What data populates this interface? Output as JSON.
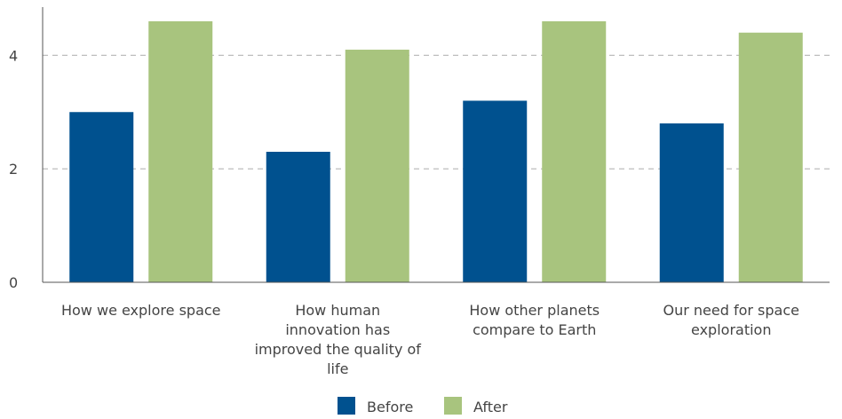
{
  "chart_data": {
    "type": "bar",
    "title": "",
    "xlabel": "",
    "ylabel": "",
    "categories": [
      "How we explore space",
      "How human innovation has improved the quality of life",
      "How other planets compare to Earth",
      "Our need for space exploration"
    ],
    "category_lines": [
      [
        "How we explore space"
      ],
      [
        "How human",
        "innovation has",
        "improved the quality of",
        "life"
      ],
      [
        "How other planets",
        "compare to Earth"
      ],
      [
        "Our need for space",
        "exploration"
      ]
    ],
    "series": [
      {
        "name": "Before",
        "color": "#00518f",
        "values": [
          3.0,
          2.3,
          3.2,
          2.8
        ]
      },
      {
        "name": "After",
        "color": "#a8c47e",
        "values": [
          4.6,
          4.1,
          4.6,
          4.4
        ]
      }
    ],
    "y_ticks": [
      0,
      2,
      4
    ],
    "ylim": [
      0,
      4.85
    ],
    "grid": true,
    "gridline_style": "dashed",
    "legend_position": "bottom"
  }
}
